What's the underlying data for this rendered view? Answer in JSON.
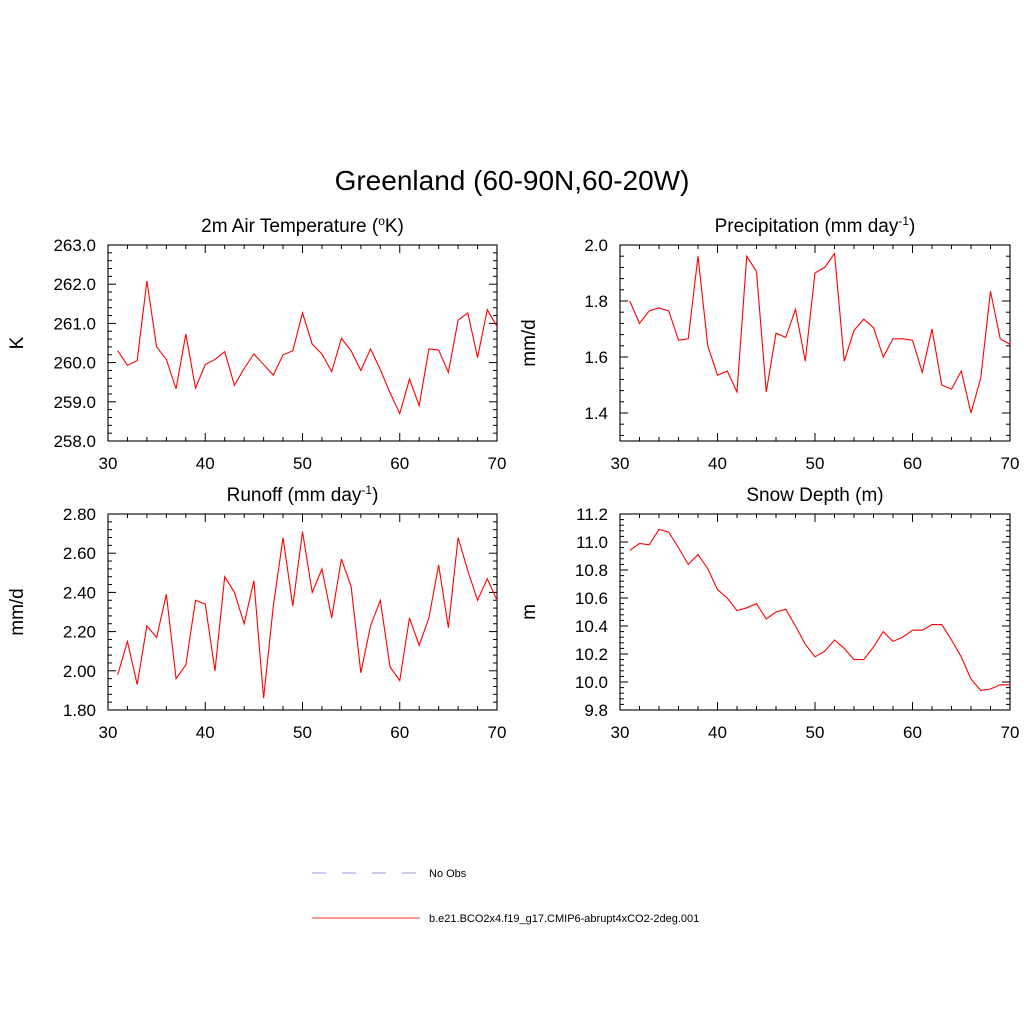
{
  "figure": {
    "title": "Greenland (60-90N,60-20W)"
  },
  "legend": [
    {
      "label": "No Obs",
      "color": "#9a9aee",
      "dash": true
    },
    {
      "label": "b.e21.BCO2x4.f19_g17.CMIP6-abrupt4xCO2-2deg.001",
      "color": "#ff3333",
      "dash": false
    }
  ],
  "chart_data": [
    {
      "type": "line",
      "title": "2m Air Temperature (°K)",
      "title_main": "2m Air Temperature (",
      "title_sup": "o",
      "title_tail": "K)",
      "ylabel": "K",
      "xlim": [
        30,
        70
      ],
      "ylim": [
        258,
        263
      ],
      "xticks": [
        30,
        40,
        50,
        60,
        70
      ],
      "yticks": [
        258,
        259,
        260,
        261,
        262,
        263
      ],
      "ytick_labels": [
        "258.0",
        "259.0",
        "260.0",
        "261.0",
        "262.0",
        "263.0"
      ],
      "color": "#ff0000",
      "x": [
        31,
        32,
        33,
        34,
        35,
        36,
        37,
        38,
        39,
        40,
        41,
        42,
        43,
        44,
        45,
        46,
        47,
        48,
        49,
        50,
        51,
        52,
        53,
        54,
        55,
        56,
        57,
        58,
        59,
        60,
        61,
        62,
        63,
        64,
        65,
        66,
        67,
        68,
        69,
        70
      ],
      "series": [
        {
          "name": "b.e21.BCO2x4.f19_g17.CMIP6-abrupt4xCO2-2deg.001",
          "values": [
            260.3,
            259.93,
            260.05,
            262.08,
            260.4,
            260.08,
            259.33,
            260.73,
            259.35,
            259.95,
            260.08,
            260.28,
            259.42,
            259.85,
            260.22,
            259.95,
            259.68,
            260.2,
            260.3,
            261.27,
            260.47,
            260.22,
            259.77,
            260.62,
            260.3,
            259.8,
            260.35,
            259.82,
            259.23,
            258.7,
            259.58,
            258.9,
            260.35,
            260.32,
            259.75,
            261.08,
            261.27,
            260.13,
            261.35,
            260.92
          ]
        }
      ]
    },
    {
      "type": "line",
      "title": "Precipitation (mm day-1)",
      "title_main": "Precipitation (mm day",
      "title_sup": "-1",
      "title_tail": ")",
      "ylabel": "mm/d",
      "xlim": [
        30,
        70
      ],
      "ylim": [
        1.3,
        2.0
      ],
      "xticks": [
        30,
        40,
        50,
        60,
        70
      ],
      "yticks": [
        1.4,
        1.6,
        1.8,
        2.0
      ],
      "ytick_labels": [
        "1.4",
        "1.6",
        "1.8",
        "2.0"
      ],
      "color": "#ff0000",
      "x": [
        31,
        32,
        33,
        34,
        35,
        36,
        37,
        38,
        39,
        40,
        41,
        42,
        43,
        44,
        45,
        46,
        47,
        48,
        49,
        50,
        51,
        52,
        53,
        54,
        55,
        56,
        57,
        58,
        59,
        60,
        61,
        62,
        63,
        64,
        65,
        66,
        67,
        68,
        69,
        70
      ],
      "series": [
        {
          "name": "b.e21.BCO2x4.f19_g17.CMIP6-abrupt4xCO2-2deg.001",
          "values": [
            1.8,
            1.72,
            1.765,
            1.775,
            1.765,
            1.66,
            1.665,
            1.96,
            1.64,
            1.535,
            1.55,
            1.475,
            1.96,
            1.905,
            1.475,
            1.685,
            1.67,
            1.77,
            1.585,
            1.9,
            1.92,
            1.97,
            1.585,
            1.695,
            1.735,
            1.705,
            1.6,
            1.665,
            1.665,
            1.66,
            1.545,
            1.7,
            1.5,
            1.485,
            1.55,
            1.4,
            1.525,
            1.835,
            1.665,
            1.645
          ]
        }
      ]
    },
    {
      "type": "line",
      "title": "Runoff (mm day-1)",
      "title_main": "Runoff (mm day",
      "title_sup": "-1",
      "title_tail": ")",
      "ylabel": "mm/d",
      "xlim": [
        30,
        70
      ],
      "ylim": [
        1.8,
        2.8
      ],
      "xticks": [
        30,
        40,
        50,
        60,
        70
      ],
      "yticks": [
        1.8,
        2.0,
        2.2,
        2.4,
        2.6,
        2.8
      ],
      "ytick_labels": [
        "1.80",
        "2.00",
        "2.20",
        "2.40",
        "2.60",
        "2.80"
      ],
      "color": "#ff0000",
      "x": [
        31,
        32,
        33,
        34,
        35,
        36,
        37,
        38,
        39,
        40,
        41,
        42,
        43,
        44,
        45,
        46,
        47,
        48,
        49,
        50,
        51,
        52,
        53,
        54,
        55,
        56,
        57,
        58,
        59,
        60,
        61,
        62,
        63,
        64,
        65,
        66,
        67,
        68,
        69,
        70
      ],
      "series": [
        {
          "name": "b.e21.BCO2x4.f19_g17.CMIP6-abrupt4xCO2-2deg.001",
          "values": [
            1.98,
            2.15,
            1.93,
            2.23,
            2.17,
            2.39,
            1.96,
            2.03,
            2.36,
            2.34,
            2.0,
            2.48,
            2.4,
            2.24,
            2.46,
            1.86,
            2.33,
            2.68,
            2.33,
            2.71,
            2.4,
            2.52,
            2.27,
            2.57,
            2.43,
            1.99,
            2.23,
            2.36,
            2.02,
            1.95,
            2.27,
            2.13,
            2.27,
            2.54,
            2.22,
            2.68,
            2.51,
            2.36,
            2.47,
            2.36
          ]
        }
      ]
    },
    {
      "type": "line",
      "title": "Snow Depth (m)",
      "title_main": "Snow Depth (m)",
      "title_sup": "",
      "title_tail": "",
      "ylabel": "m",
      "xlim": [
        30,
        70
      ],
      "ylim": [
        9.8,
        11.2
      ],
      "xticks": [
        30,
        40,
        50,
        60,
        70
      ],
      "yticks": [
        9.8,
        10.0,
        10.2,
        10.4,
        10.6,
        10.8,
        11.0,
        11.2
      ],
      "ytick_labels": [
        "9.8",
        "10.0",
        "10.2",
        "10.4",
        "10.6",
        "10.8",
        "11.0",
        "11.2"
      ],
      "color": "#ff0000",
      "x": [
        31,
        32,
        33,
        34,
        35,
        36,
        37,
        38,
        39,
        40,
        41,
        42,
        43,
        44,
        45,
        46,
        47,
        48,
        49,
        50,
        51,
        52,
        53,
        54,
        55,
        56,
        57,
        58,
        59,
        60,
        61,
        62,
        63,
        64,
        65,
        66,
        67,
        68,
        69,
        70
      ],
      "series": [
        {
          "name": "b.e21.BCO2x4.f19_g17.CMIP6-abrupt4xCO2-2deg.001",
          "values": [
            10.94,
            10.99,
            10.98,
            11.09,
            11.07,
            10.96,
            10.84,
            10.91,
            10.81,
            10.66,
            10.6,
            10.51,
            10.53,
            10.56,
            10.45,
            10.5,
            10.52,
            10.4,
            10.27,
            10.18,
            10.22,
            10.3,
            10.24,
            10.16,
            10.16,
            10.25,
            10.36,
            10.29,
            10.32,
            10.37,
            10.37,
            10.41,
            10.41,
            10.3,
            10.18,
            10.02,
            9.94,
            9.95,
            9.98,
            9.98
          ]
        }
      ]
    }
  ]
}
